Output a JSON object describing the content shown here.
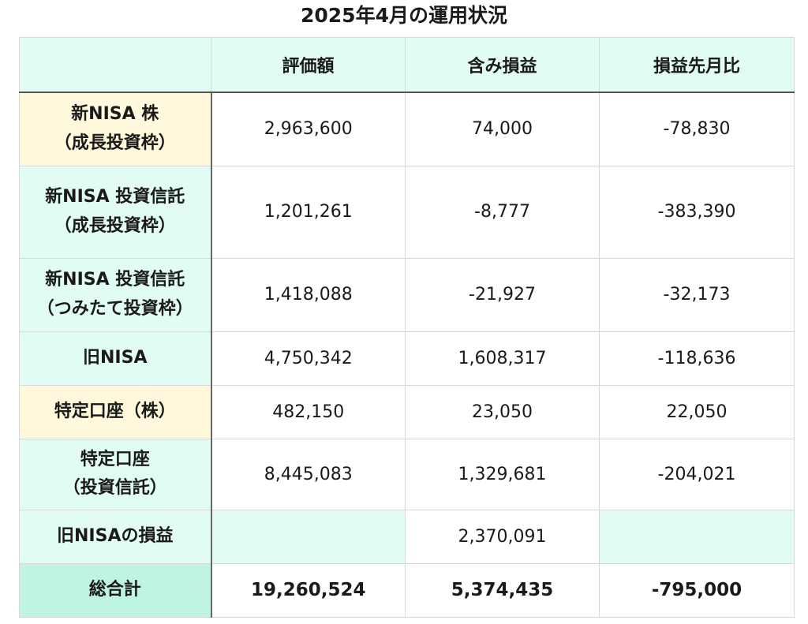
{
  "title": "2025年4月の運用状況",
  "columns": [
    "",
    "評価額",
    "含み損益",
    "損益先月比"
  ],
  "rows": [
    {
      "label_line1": "新NISA 株",
      "label_line2": "（成長投資枠）",
      "valuation": "2,963,600",
      "unrealized": "74,000",
      "mom_change": "-78,830",
      "label_color": "#fff8dc"
    },
    {
      "label_line1": "新NISA 投資信託",
      "label_line2": "（成長投資枠）",
      "valuation": "1,201,261",
      "unrealized": "-8,777",
      "mom_change": "-383,390",
      "label_color": "#e1fbf5"
    },
    {
      "label_line1": "新NISA 投資信託",
      "label_line2": "（つみたて投資枠）",
      "valuation": "1,418,088",
      "unrealized": "-21,927",
      "mom_change": "-32,173",
      "label_color": "#e1fbf5"
    },
    {
      "label_line1": "旧NISA",
      "label_line2": "",
      "valuation": "4,750,342",
      "unrealized": "1,608,317",
      "mom_change": "-118,636",
      "label_color": "#e1fbf5"
    },
    {
      "label_line1": "特定口座（株）",
      "label_line2": "",
      "valuation": "482,150",
      "unrealized": "23,050",
      "mom_change": "22,050",
      "label_color": "#fff8dc"
    },
    {
      "label_line1": "特定口座",
      "label_line2": "（投資信託）",
      "valuation": "8,445,083",
      "unrealized": "1,329,681",
      "mom_change": "-204,021",
      "label_color": "#e1fbf5"
    },
    {
      "label_line1": "旧NISAの損益",
      "label_line2": "",
      "valuation": "",
      "unrealized": "2,370,091",
      "mom_change": "",
      "label_color": "#e1fbf5"
    }
  ],
  "total": {
    "label": "総合計",
    "valuation": "19,260,524",
    "unrealized": "5,374,435",
    "mom_change": "-795,000",
    "label_color": "#bff3e4"
  }
}
